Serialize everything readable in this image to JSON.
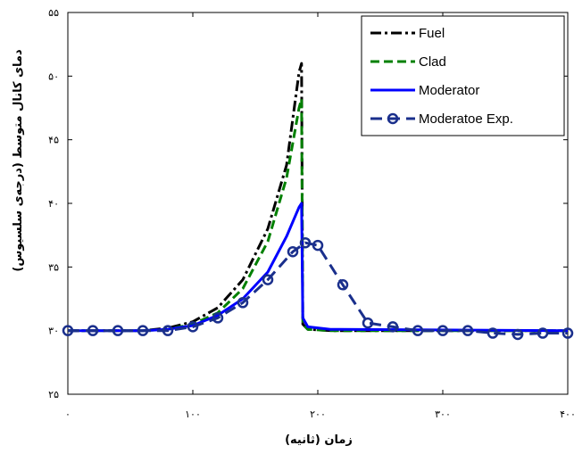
{
  "chart_data": {
    "type": "line",
    "xlabel": "زمان (ثانیه)",
    "ylabel": "دمای کانال متوسط (درجه‌ی سلسیوس)",
    "xlim": [
      0,
      400
    ],
    "ylim": [
      25,
      55
    ],
    "x_ticks": [
      0,
      100,
      200,
      300,
      400
    ],
    "x_tick_labels": [
      "۰",
      "۱۰۰",
      "۲۰۰",
      "۳۰۰",
      "۴۰۰"
    ],
    "y_ticks": [
      25,
      30,
      35,
      40,
      45,
      50,
      55
    ],
    "y_tick_labels": [
      "۲۵",
      "۳۰",
      "۳۵",
      "۴۰",
      "۴۵",
      "۵۰",
      "۵۵"
    ],
    "grid": false,
    "legend_position": "top-right",
    "series": [
      {
        "name": "Fuel",
        "color": "#000000",
        "style": "dash-dot",
        "points": [
          [
            0,
            30
          ],
          [
            60,
            30
          ],
          [
            80,
            30.2
          ],
          [
            100,
            30.7
          ],
          [
            120,
            31.8
          ],
          [
            140,
            34
          ],
          [
            160,
            38
          ],
          [
            175,
            43
          ],
          [
            185,
            50.3
          ],
          [
            187,
            51
          ],
          [
            188,
            30.5
          ],
          [
            192,
            30.1
          ],
          [
            210,
            30
          ],
          [
            400,
            30
          ]
        ]
      },
      {
        "name": "Clad",
        "color": "#008000",
        "style": "dashed",
        "points": [
          [
            0,
            30
          ],
          [
            60,
            30
          ],
          [
            80,
            30.1
          ],
          [
            100,
            30.5
          ],
          [
            120,
            31.4
          ],
          [
            140,
            33.3
          ],
          [
            160,
            37
          ],
          [
            175,
            42
          ],
          [
            185,
            47.5
          ],
          [
            187,
            48.2
          ],
          [
            188,
            30.5
          ],
          [
            192,
            30.1
          ],
          [
            210,
            30
          ],
          [
            400,
            30
          ]
        ]
      },
      {
        "name": "Moderator",
        "color": "#0000ff",
        "style": "solid",
        "points": [
          [
            0,
            30
          ],
          [
            60,
            30
          ],
          [
            80,
            30.1
          ],
          [
            100,
            30.4
          ],
          [
            120,
            31.2
          ],
          [
            140,
            32.5
          ],
          [
            160,
            34.6
          ],
          [
            175,
            37.4
          ],
          [
            185,
            39.7
          ],
          [
            187,
            40
          ],
          [
            188,
            31
          ],
          [
            192,
            30.3
          ],
          [
            210,
            30.1
          ],
          [
            400,
            30
          ]
        ]
      },
      {
        "name": "Moderatoe Exp.",
        "color": "#1a2f8c",
        "style": "dashed-marker",
        "marker": "circle",
        "points": [
          [
            0,
            30
          ],
          [
            20,
            30
          ],
          [
            40,
            30
          ],
          [
            60,
            30
          ],
          [
            80,
            30
          ],
          [
            100,
            30.3
          ],
          [
            120,
            31
          ],
          [
            140,
            32.2
          ],
          [
            160,
            34
          ],
          [
            180,
            36.2
          ],
          [
            190,
            36.9
          ],
          [
            200,
            36.7
          ],
          [
            220,
            33.6
          ],
          [
            240,
            30.6
          ],
          [
            260,
            30.3
          ],
          [
            280,
            30
          ],
          [
            300,
            30
          ],
          [
            320,
            30
          ],
          [
            340,
            29.8
          ],
          [
            360,
            29.7
          ],
          [
            380,
            29.8
          ],
          [
            400,
            29.8
          ]
        ]
      }
    ]
  }
}
